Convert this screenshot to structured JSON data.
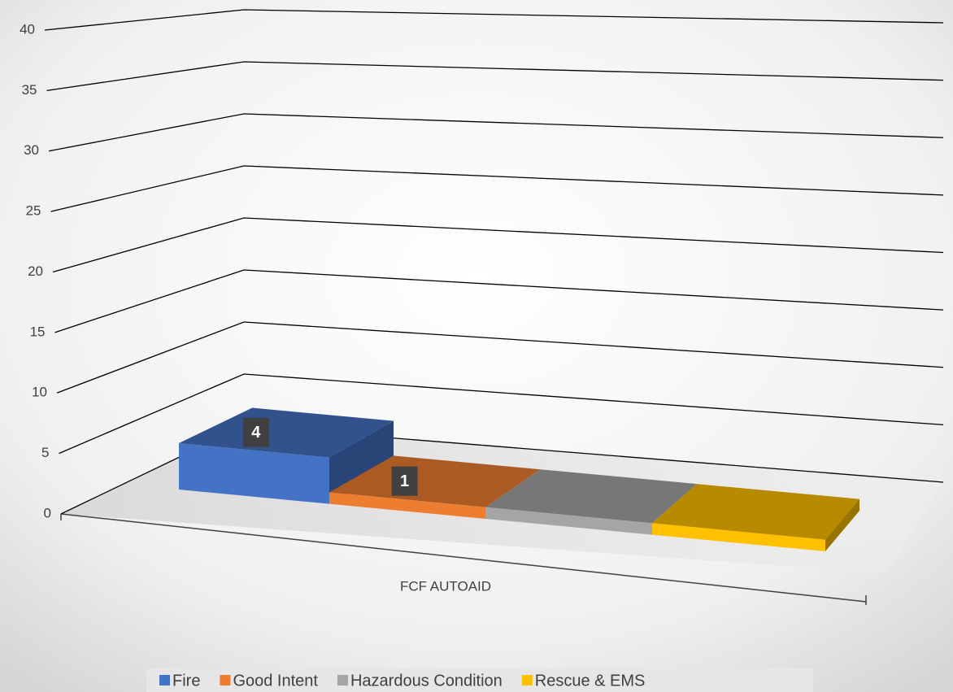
{
  "chart_data": {
    "type": "bar3d",
    "categories": [
      "FCF AUTOAID"
    ],
    "series": [
      {
        "name": "Fire",
        "color": "#4472c4",
        "values": [
          4
        ],
        "data_labels": true
      },
      {
        "name": "Good Intent",
        "color": "#ed7d31",
        "values": [
          1
        ],
        "data_labels": true
      },
      {
        "name": "Hazardous Condition",
        "color": "#a5a5a5",
        "values": [
          1
        ],
        "data_labels": false
      },
      {
        "name": "Rescue & EMS",
        "color": "#ffc000",
        "values": [
          1
        ],
        "data_labels": false
      }
    ],
    "ylim": [
      0,
      40
    ],
    "yticks": [
      0,
      5,
      10,
      15,
      20,
      25,
      30,
      35,
      40
    ],
    "grid": true,
    "legend": "bottom"
  }
}
